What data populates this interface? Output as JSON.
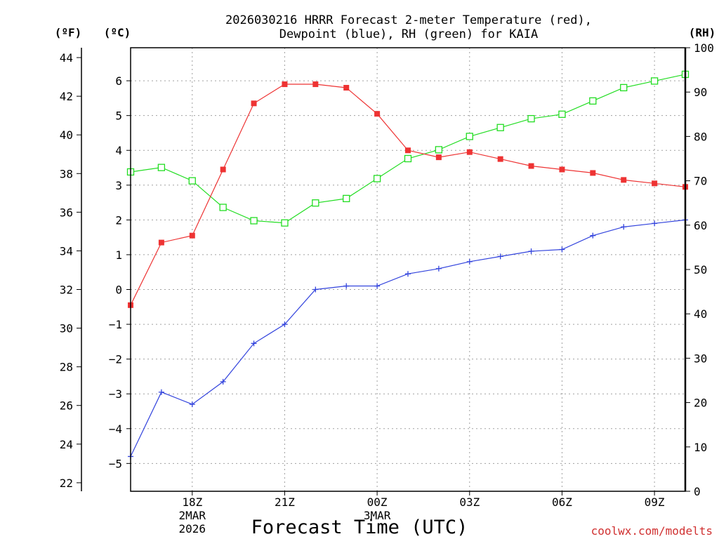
{
  "chart_data": {
    "type": "line",
    "title_line1": "2026030216 HRRR Forecast 2-meter Temperature (red),",
    "title_line2": "Dewpoint (blue), RH (green) for KAIA",
    "xlabel": "Forecast Time (UTC)",
    "credit": "coolwx.com/modelts",
    "units": {
      "fahrenheit": "(ºF)",
      "celsius": "(ºC)",
      "rh": "(RH)"
    },
    "x_hours": [
      0,
      1,
      2,
      3,
      4,
      5,
      6,
      7,
      8,
      9,
      10,
      11,
      12,
      13,
      14,
      15,
      16,
      17,
      18
    ],
    "x_range": [
      0,
      18
    ],
    "x_ticks": [
      {
        "hour": 2,
        "lines": [
          "18Z",
          "2MAR",
          "2026"
        ]
      },
      {
        "hour": 5,
        "lines": [
          "21Z"
        ]
      },
      {
        "hour": 8,
        "lines": [
          "00Z",
          "3MAR"
        ]
      },
      {
        "hour": 11,
        "lines": [
          "03Z"
        ]
      },
      {
        "hour": 14,
        "lines": [
          "06Z"
        ]
      },
      {
        "hour": 17,
        "lines": [
          "09Z"
        ]
      }
    ],
    "celsius_range": [
      -5.8,
      6.95
    ],
    "celsius_ticks": [
      "6",
      "5",
      "4",
      "3",
      "2",
      "1",
      "0",
      "−1",
      "−2",
      "−3",
      "−4",
      "−5"
    ],
    "fahrenheit_ticks": [
      "44",
      "42",
      "40",
      "38",
      "36",
      "34",
      "32",
      "30",
      "28",
      "26",
      "24",
      "22"
    ],
    "rh_range": [
      0,
      100
    ],
    "rh_ticks": [
      "100",
      "90",
      "80",
      "70",
      "60",
      "50",
      "40",
      "30",
      "20",
      "10",
      "0"
    ],
    "colors": {
      "temperature": "#ee3333",
      "dewpoint": "#3344dd",
      "rh": "#22dd22",
      "grid": "#a0a0a0",
      "axis": "#000000"
    },
    "series": [
      {
        "name": "Temperature (°C)",
        "axis": "celsius",
        "values": [
          -0.45,
          1.35,
          1.55,
          3.45,
          5.35,
          5.9,
          5.9,
          5.8,
          5.05,
          4.0,
          3.8,
          3.95,
          3.75,
          3.55,
          3.45,
          3.35,
          3.15,
          3.05,
          2.95
        ]
      },
      {
        "name": "Dewpoint (°C)",
        "axis": "celsius",
        "values": [
          -4.8,
          -2.95,
          -3.3,
          -2.65,
          -1.55,
          -1.0,
          0.0,
          0.1,
          0.1,
          0.45,
          0.6,
          0.8,
          0.95,
          1.1,
          1.15,
          1.55,
          1.8,
          1.9,
          2.0
        ]
      },
      {
        "name": "RH (%)",
        "axis": "rh",
        "values": [
          72,
          73,
          70,
          64,
          61,
          60.5,
          65,
          66,
          70.5,
          75,
          77,
          80,
          82,
          84,
          85,
          88,
          91,
          92.5,
          94
        ]
      }
    ]
  }
}
